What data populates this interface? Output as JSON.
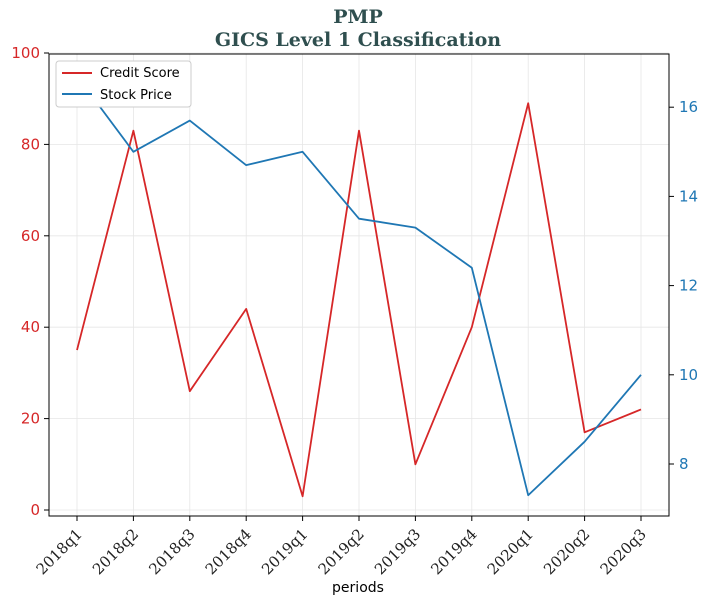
{
  "chart_data": {
    "type": "line",
    "title": "PMP",
    "subtitle": "GICS Level 1 Classification",
    "xlabel": "periods",
    "categories": [
      "2018q1",
      "2018q2",
      "2018q3",
      "2018q4",
      "2019q1",
      "2019q2",
      "2019q3",
      "2019q4",
      "2020q1",
      "2020q2",
      "2020q3"
    ],
    "series": [
      {
        "name": "Credit Score",
        "axis": "left",
        "color": "#d62728",
        "values": [
          35,
          83,
          26,
          44,
          3,
          83,
          10,
          40,
          89,
          17,
          22
        ]
      },
      {
        "name": "Stock Price",
        "axis": "right",
        "color": "#1f77b4",
        "values": [
          16.7,
          15.0,
          15.7,
          14.7,
          15.0,
          13.5,
          13.3,
          12.4,
          7.3,
          8.5,
          10.0
        ]
      }
    ],
    "ylim_left": [
      0,
      100
    ],
    "yticks_left": [
      0,
      20,
      40,
      60,
      80,
      100
    ],
    "ylim_right": [
      7.0,
      17.2
    ],
    "yticks_right": [
      8,
      10,
      12,
      14,
      16
    ],
    "grid": true,
    "legend": "top-left"
  }
}
